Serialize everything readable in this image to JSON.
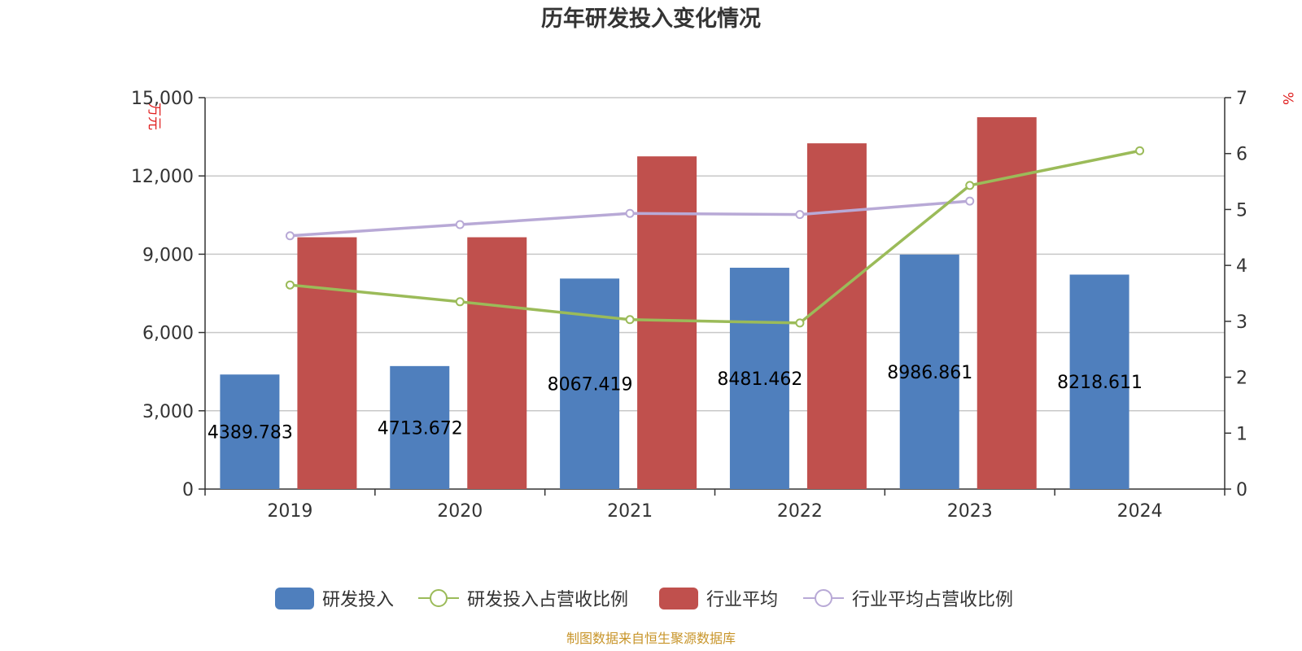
{
  "colors": {
    "rd_bar": "#4f7fbd",
    "rd_ratio_line": "#9bbb59",
    "industry_bar": "#c0504d",
    "industry_ratio_line": "#b8a9d6",
    "grid": "#c8c8c8",
    "axis": "#333333",
    "unit_text": "#e02020",
    "source_text": "#c8952a"
  },
  "chart_data": {
    "type": "bar",
    "title": "历年研发投入变化情况",
    "categories": [
      "2019",
      "2020",
      "2021",
      "2022",
      "2023",
      "2024"
    ],
    "y_left": {
      "unit": "万元",
      "ylim": [
        0,
        15000
      ],
      "ticks": [
        0,
        3000,
        6000,
        9000,
        12000,
        15000
      ],
      "tick_labels": [
        "0",
        "3,000",
        "6,000",
        "9,000",
        "12,000",
        "15,000"
      ]
    },
    "y_right": {
      "unit": "%",
      "ylim": [
        0,
        7
      ],
      "ticks": [
        0,
        1,
        2,
        3,
        4,
        5,
        6,
        7
      ],
      "tick_labels": [
        "0",
        "1",
        "2",
        "3",
        "4",
        "5",
        "6",
        "7"
      ]
    },
    "grid": true,
    "legend_position": "bottom-center",
    "series": [
      {
        "name": "研发投入",
        "type": "bar",
        "axis": "left",
        "values": [
          4389.783,
          4713.672,
          8067.419,
          8481.462,
          8986.861,
          8218.611
        ],
        "data_labels": [
          "4389.783",
          "4713.672",
          "8067.419",
          "8481.462",
          "8986.861",
          "8218.611"
        ]
      },
      {
        "name": "研发投入占营收比例",
        "type": "line",
        "axis": "right",
        "values": [
          3.65,
          3.35,
          3.03,
          2.97,
          5.43,
          6.05
        ]
      },
      {
        "name": "行业平均",
        "type": "bar",
        "axis": "left",
        "values": [
          9650,
          9650,
          12750,
          13250,
          14250,
          null
        ]
      },
      {
        "name": "行业平均占营收比例",
        "type": "line",
        "axis": "right",
        "values": [
          4.53,
          4.73,
          4.93,
          4.91,
          5.15,
          null
        ]
      }
    ]
  },
  "footer": {
    "source": "制图数据来自恒生聚源数据库"
  }
}
